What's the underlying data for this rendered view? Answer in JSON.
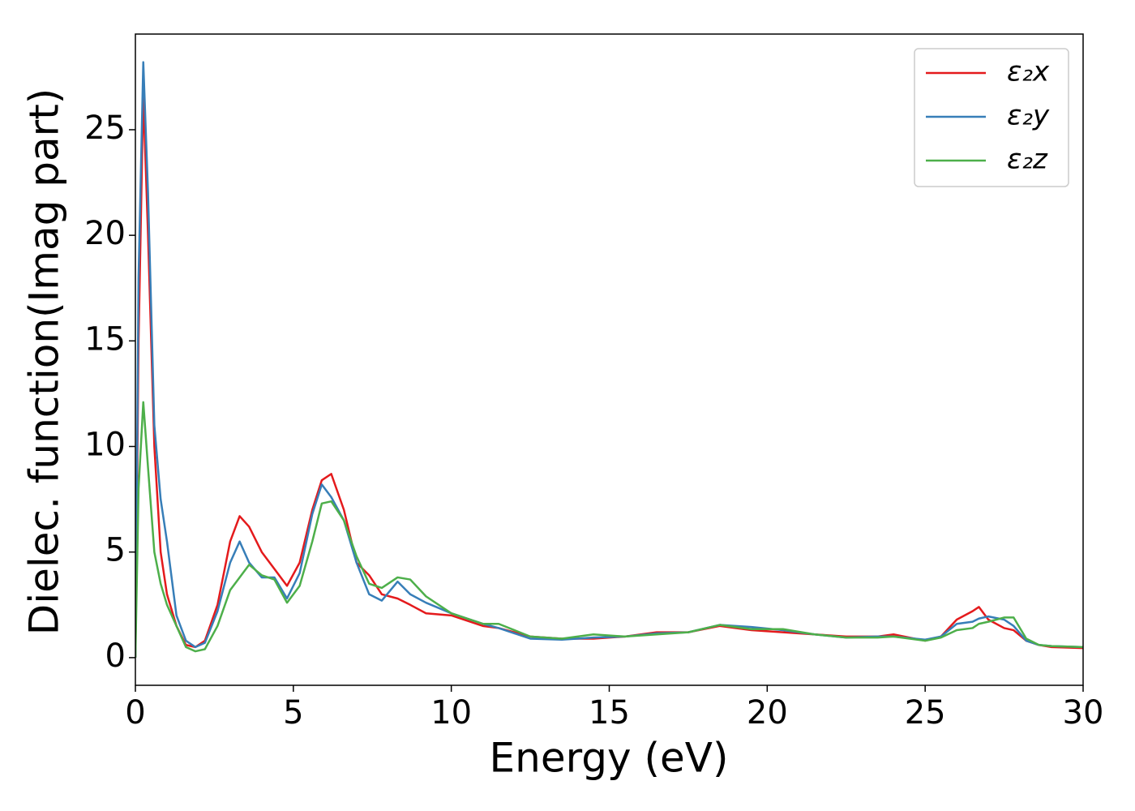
{
  "chart_data": {
    "type": "line",
    "xlabel": "Energy (eV)",
    "ylabel": "Dielec. function(Imag part)",
    "x": [
      0,
      0.1,
      0.25,
      0.4,
      0.6,
      0.8,
      1.0,
      1.3,
      1.6,
      1.9,
      2.2,
      2.6,
      3.0,
      3.3,
      3.6,
      4.0,
      4.4,
      4.8,
      5.2,
      5.6,
      5.9,
      6.2,
      6.6,
      7.0,
      7.4,
      7.8,
      8.3,
      8.7,
      9.2,
      10,
      11,
      11.5,
      12.5,
      13.5,
      14.5,
      15.5,
      16.5,
      17.5,
      18.5,
      19.5,
      20.5,
      21.5,
      22.5,
      23.5,
      24,
      25,
      25.5,
      26,
      26.5,
      26.7,
      27,
      27.5,
      27.8,
      28.2,
      28.6,
      29,
      30
    ],
    "series": [
      {
        "name": "ε₂x",
        "color": "#e41a1c",
        "values": [
          0,
          15,
          26.7,
          20,
          10,
          5,
          3,
          1.5,
          0.6,
          0.5,
          0.8,
          2.5,
          5.5,
          6.7,
          6.2,
          5.0,
          4.2,
          3.4,
          4.5,
          7.0,
          8.4,
          8.7,
          7.0,
          4.5,
          3.9,
          3.0,
          2.8,
          2.5,
          2.1,
          2.0,
          1.5,
          1.4,
          1.0,
          0.9,
          0.9,
          1.0,
          1.2,
          1.2,
          1.5,
          1.3,
          1.2,
          1.1,
          1.0,
          1.0,
          1.1,
          0.8,
          1.0,
          1.8,
          2.2,
          2.4,
          1.8,
          1.4,
          1.3,
          0.8,
          0.6,
          0.5,
          0.45
        ]
      },
      {
        "name": "ε₂y",
        "color": "#377eb8",
        "values": [
          0,
          18,
          28.2,
          22,
          11,
          7.5,
          5.5,
          2.0,
          0.8,
          0.5,
          0.7,
          2.2,
          4.5,
          5.5,
          4.5,
          3.8,
          3.8,
          2.8,
          4.0,
          6.8,
          8.2,
          7.6,
          6.5,
          4.5,
          3.0,
          2.7,
          3.6,
          3.0,
          2.6,
          2.1,
          1.6,
          1.4,
          0.9,
          0.85,
          0.95,
          1.0,
          1.15,
          1.2,
          1.55,
          1.45,
          1.3,
          1.1,
          0.95,
          1.0,
          1.0,
          0.85,
          1.0,
          1.6,
          1.7,
          1.85,
          1.95,
          1.8,
          1.5,
          0.8,
          0.6,
          0.55,
          0.5
        ]
      },
      {
        "name": "ε₂z",
        "color": "#4daf4a",
        "values": [
          0,
          8,
          12.1,
          9,
          5,
          3.5,
          2.5,
          1.5,
          0.5,
          0.3,
          0.4,
          1.5,
          3.2,
          3.8,
          4.4,
          3.9,
          3.7,
          2.6,
          3.4,
          5.5,
          7.3,
          7.4,
          6.5,
          4.8,
          3.5,
          3.3,
          3.8,
          3.7,
          2.9,
          2.1,
          1.6,
          1.6,
          1.0,
          0.9,
          1.1,
          1.0,
          1.1,
          1.2,
          1.55,
          1.35,
          1.35,
          1.1,
          0.95,
          0.95,
          1.0,
          0.8,
          0.95,
          1.3,
          1.4,
          1.6,
          1.7,
          1.9,
          1.9,
          0.9,
          0.6,
          0.55,
          0.5
        ]
      }
    ],
    "xlim": [
      0,
      30
    ],
    "xticks": [
      0,
      5,
      10,
      15,
      20,
      25,
      30
    ],
    "ylim": [
      -1.31,
      29.53
    ],
    "yticks": [
      0,
      5,
      10,
      15,
      20,
      25
    ],
    "legend": "upper right"
  }
}
